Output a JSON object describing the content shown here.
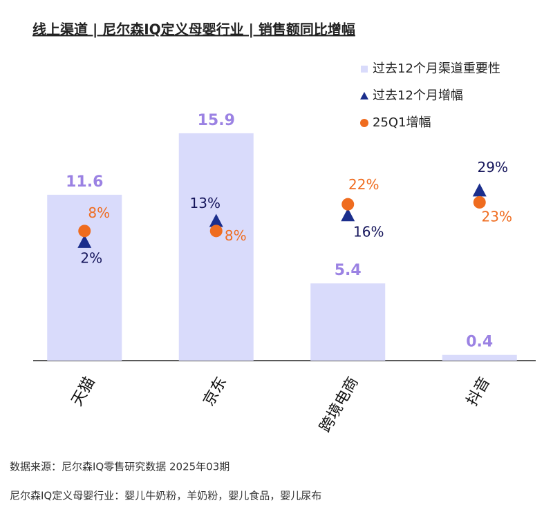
{
  "chart_data": {
    "type": "bar",
    "title": "线上渠道 | 尼尔森IQ定义母婴行业 | 销售额同比增幅",
    "categories": [
      "天猫",
      "京东",
      "跨境电商",
      "抖音"
    ],
    "ylim": [
      0,
      20
    ],
    "y2lim": [
      -60,
      90
    ],
    "legend": "top-right",
    "series": [
      {
        "name": "过去12个月渠道重要性",
        "type": "bar",
        "color": "#d9dbfb",
        "label_color": "#9b82e3",
        "values": [
          11.6,
          15.9,
          5.4,
          0.4
        ]
      },
      {
        "name": "过去12个月增幅",
        "type": "triangle",
        "axis": "y2",
        "color": "#1b2e8c",
        "label_color": "#14145a",
        "values": [
          2,
          13,
          16,
          29
        ],
        "value_labels": [
          "2%",
          "13%",
          "16%",
          "29%"
        ]
      },
      {
        "name": "25Q1增幅",
        "type": "circle",
        "axis": "y2",
        "color": "#ef6c1f",
        "label_color": "#ef6c1f",
        "values": [
          8,
          8,
          22,
          23
        ],
        "value_labels": [
          "8%",
          "8%",
          "22%",
          "23%"
        ]
      }
    ],
    "footnotes": [
      "数据来源：尼尔森IQ零售研究数据 2025年03期",
      "尼尔森IQ定义母婴行业：婴儿牛奶粉，羊奶粉，婴儿食品，婴儿尿布"
    ]
  }
}
